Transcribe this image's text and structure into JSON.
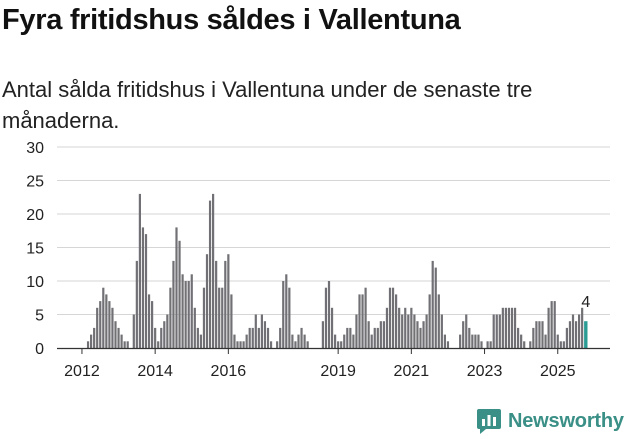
{
  "title": "Fyra fritidshus såldes i Vallentuna",
  "subtitle": "Antal sålda fritidshus i Vallentuna under de senaste tre månaderna.",
  "logo_text": "Newsworthy",
  "colors": {
    "bar": "#717075",
    "highlight": "#2a9c93",
    "grid": "#d6d6d6",
    "text": "#222222"
  },
  "chart_data": {
    "type": "bar",
    "title": "Fyra fritidshus såldes i Vallentuna",
    "xlabel": "",
    "ylabel": "",
    "ylim": [
      0,
      30
    ],
    "yticks": [
      0,
      5,
      10,
      15,
      20,
      25,
      30
    ],
    "x_tick_labels": [
      {
        "label": "2012",
        "index": 7
      },
      {
        "label": "2014",
        "index": 31
      },
      {
        "label": "2016",
        "index": 55
      },
      {
        "label": "2019",
        "index": 91
      },
      {
        "label": "2021",
        "index": 115
      },
      {
        "label": "2023",
        "index": 139
      },
      {
        "label": "2025",
        "index": 163
      }
    ],
    "annotation": {
      "text": "4",
      "index": 172,
      "value": 4
    },
    "values": [
      0,
      0,
      0,
      0,
      0,
      0,
      0,
      0,
      0,
      1,
      2,
      3,
      6,
      7,
      9,
      8,
      7,
      6,
      4,
      3,
      2,
      1,
      1,
      0,
      5,
      13,
      23,
      18,
      17,
      8,
      7,
      3,
      1,
      3,
      4,
      5,
      9,
      13,
      18,
      16,
      11,
      10,
      10,
      11,
      6,
      3,
      2,
      9,
      14,
      22,
      23,
      13,
      9,
      9,
      13,
      14,
      8,
      2,
      1,
      1,
      1,
      2,
      3,
      3,
      5,
      3,
      5,
      4,
      3,
      1,
      0,
      1,
      3,
      10,
      11,
      9,
      2,
      1,
      2,
      3,
      2,
      1,
      0,
      0,
      0,
      0,
      4,
      9,
      10,
      6,
      2,
      1,
      1,
      2,
      3,
      3,
      2,
      5,
      8,
      8,
      9,
      4,
      2,
      3,
      3,
      4,
      4,
      6,
      9,
      9,
      8,
      6,
      5,
      6,
      5,
      6,
      5,
      4,
      3,
      4,
      5,
      8,
      13,
      12,
      8,
      5,
      2,
      1,
      0,
      0,
      0,
      2,
      4,
      5,
      3,
      2,
      2,
      2,
      1,
      0,
      1,
      1,
      5,
      5,
      5,
      6,
      6,
      6,
      6,
      6,
      3,
      2,
      1,
      0,
      1,
      3,
      4,
      4,
      4,
      2,
      6,
      7,
      7,
      2,
      1,
      1,
      3,
      4,
      5,
      4,
      5,
      6,
      4
    ]
  }
}
